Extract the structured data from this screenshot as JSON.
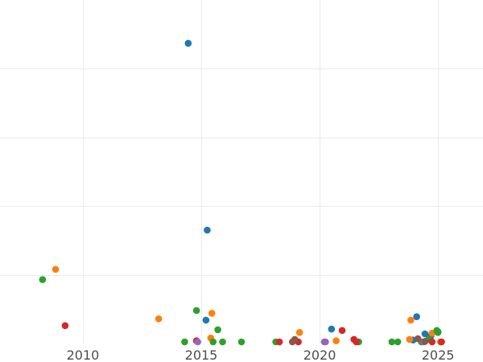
{
  "chart_data": {
    "type": "scatter",
    "title": "",
    "xlabel": "",
    "ylabel": "",
    "xlim": [
      2006.5,
      2026.9
    ],
    "ylim": [
      0,
      500
    ],
    "x_ticks": [
      2010,
      2015,
      2020,
      2025
    ],
    "x_tick_labels": [
      "2010",
      "2015",
      "2020",
      "2025"
    ],
    "y_gridlines": [
      100,
      200,
      300,
      400
    ],
    "y_tick_labels_visible": false,
    "grid": true,
    "series": [
      {
        "color": "#1f77b4",
        "points": [
          [
            2014.45,
            437
          ],
          [
            2015.25,
            165
          ],
          [
            2015.2,
            34
          ],
          [
            2020.5,
            21
          ],
          [
            2024.1,
            39
          ],
          [
            2024.45,
            14
          ],
          [
            2024.7,
            11
          ],
          [
            2023.95,
            5
          ],
          [
            2025.0,
            17
          ]
        ]
      },
      {
        "color": "#ff7f0e",
        "points": [
          [
            2008.85,
            108
          ],
          [
            2013.2,
            36
          ],
          [
            2015.45,
            44
          ],
          [
            2015.4,
            8
          ],
          [
            2019.15,
            16
          ],
          [
            2020.7,
            4
          ],
          [
            2023.85,
            34
          ],
          [
            2023.8,
            6
          ],
          [
            2024.75,
            15
          ],
          [
            2025.1,
            2
          ]
        ]
      },
      {
        "color": "#2ca02c",
        "points": [
          [
            2008.3,
            93
          ],
          [
            2014.8,
            48
          ],
          [
            2015.7,
            20
          ],
          [
            2014.3,
            1
          ],
          [
            2015.5,
            2
          ],
          [
            2015.9,
            0
          ],
          [
            2016.7,
            0
          ],
          [
            2018.15,
            0
          ],
          [
            2021.65,
            0
          ],
          [
            2023.05,
            0
          ],
          [
            2023.3,
            0
          ],
          [
            2024.3,
            2
          ],
          [
            2024.95,
            19
          ],
          [
            2025.0,
            16
          ],
          [
            2024.6,
            6
          ]
        ]
      },
      {
        "color": "#d62728",
        "points": [
          [
            2009.25,
            26
          ],
          [
            2014.8,
            4
          ],
          [
            2018.3,
            0
          ],
          [
            2019.1,
            0
          ],
          [
            2020.95,
            19
          ],
          [
            2021.45,
            6
          ],
          [
            2021.55,
            2
          ],
          [
            2024.75,
            0
          ],
          [
            2025.15,
            0
          ]
        ]
      },
      {
        "color": "#9467bd",
        "points": [
          [
            2014.85,
            1
          ],
          [
            2020.25,
            1
          ],
          [
            2020.2,
            0
          ],
          [
            2024.4,
            2
          ]
        ]
      },
      {
        "color": "#8c564b",
        "points": [
          [
            2018.95,
            6
          ],
          [
            2018.85,
            1
          ],
          [
            2024.15,
            7
          ],
          [
            2024.45,
            3
          ]
        ]
      }
    ]
  }
}
